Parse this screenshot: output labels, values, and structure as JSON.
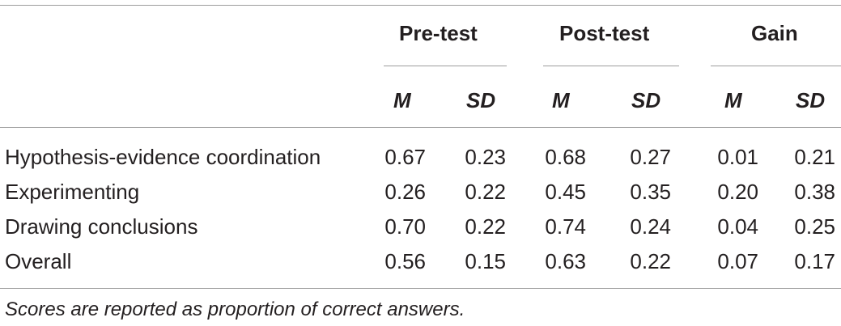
{
  "table": {
    "groups": [
      "Pre-test",
      "Post-test",
      "Gain"
    ],
    "subheaders": [
      "M",
      "SD",
      "M",
      "SD",
      "M",
      "SD"
    ],
    "rows": [
      {
        "label": "Hypothesis-evidence coordination",
        "values": [
          "0.67",
          "0.23",
          "0.68",
          "0.27",
          "0.01",
          "0.21"
        ]
      },
      {
        "label": "Experimenting",
        "values": [
          "0.26",
          "0.22",
          "0.45",
          "0.35",
          "0.20",
          "0.38"
        ]
      },
      {
        "label": "Drawing conclusions",
        "values": [
          "0.70",
          "0.22",
          "0.74",
          "0.24",
          "0.04",
          "0.25"
        ]
      },
      {
        "label": "Overall",
        "values": [
          "0.56",
          "0.15",
          "0.63",
          "0.22",
          "0.07",
          "0.17"
        ]
      }
    ]
  },
  "footnote": "Scores are reported as proportion of correct answers."
}
